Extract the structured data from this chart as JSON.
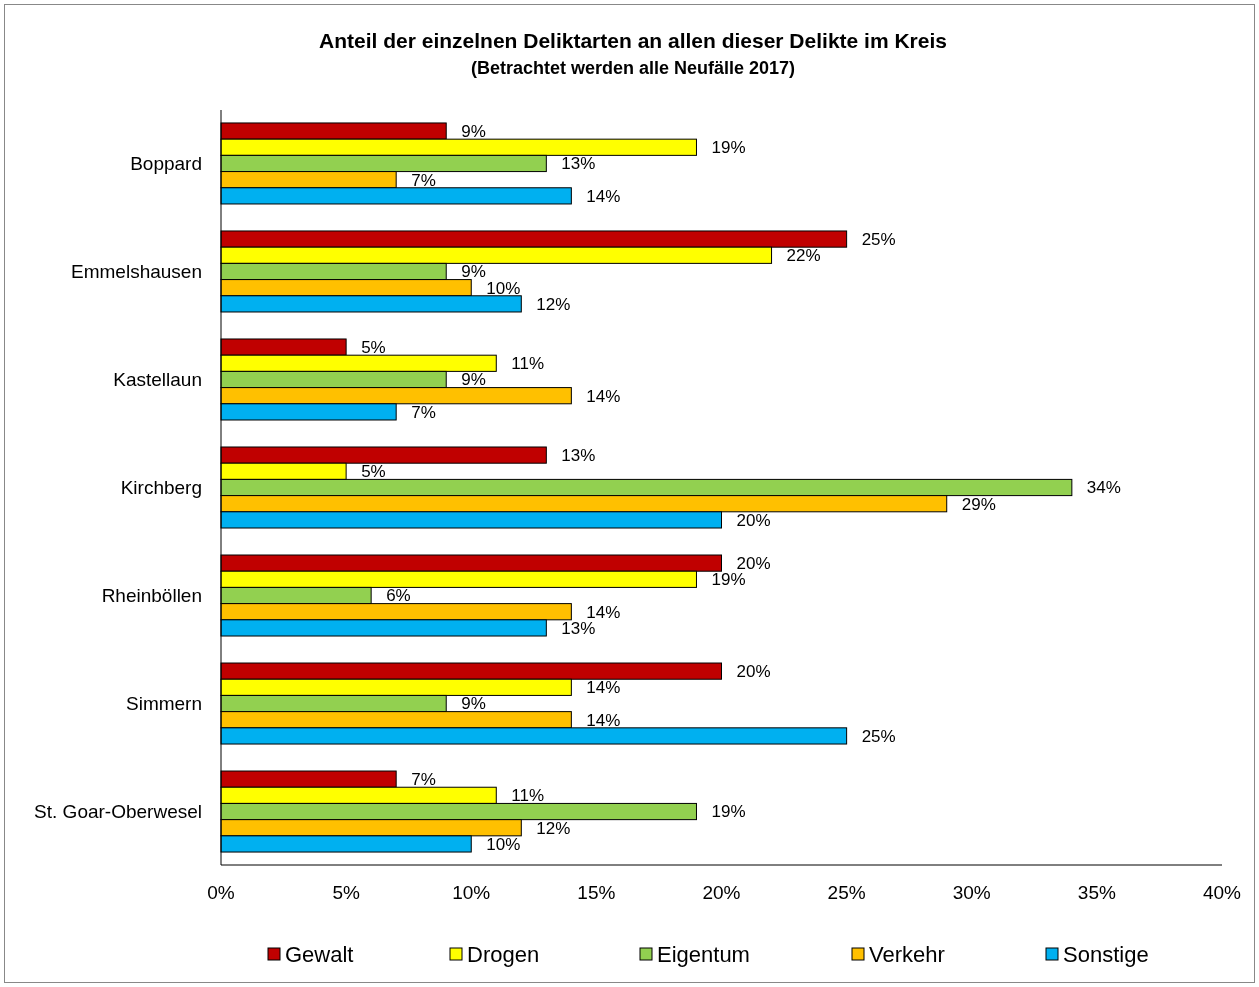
{
  "chart_data": {
    "type": "bar",
    "orientation": "horizontal",
    "title": "Anteil der einzelnen Deliktarten an allen dieser Delikte im Kreis",
    "subtitle": "(Betrachtet werden alle Neufälle 2017)",
    "categories": [
      "Boppard",
      "Emmelshausen",
      "Kastellaun",
      "Kirchberg",
      "Rheinböllen",
      "Simmern",
      "St. Goar-Oberwesel"
    ],
    "series": [
      {
        "name": "Gewalt",
        "color": "#c00000",
        "values": [
          9,
          25,
          5,
          13,
          20,
          20,
          7
        ],
        "value_labels": [
          "9%",
          "25%",
          "5%",
          "13%",
          "20%",
          "20%",
          "7%"
        ]
      },
      {
        "name": "Drogen",
        "color": "#ffff00",
        "values": [
          19,
          22,
          11,
          5,
          19,
          14,
          11
        ],
        "value_labels": [
          "19%",
          "22%",
          "11%",
          "5%",
          "19%",
          "14%",
          "11%"
        ]
      },
      {
        "name": "Eigentum",
        "color": "#92d050",
        "values": [
          13,
          9,
          9,
          34,
          6,
          9,
          19
        ],
        "value_labels": [
          "13%",
          "9%",
          "9%",
          "34%",
          "6%",
          "9%",
          "19%"
        ]
      },
      {
        "name": "Verkehr",
        "color": "#ffc000",
        "values": [
          7,
          10,
          14,
          29,
          14,
          14,
          12
        ],
        "value_labels": [
          "7%",
          "10%",
          "14%",
          "29%",
          "14%",
          "14%",
          "12%"
        ]
      },
      {
        "name": "Sonstige",
        "color": "#00b0f0",
        "values": [
          14,
          12,
          7,
          20,
          13,
          25,
          10
        ],
        "value_labels": [
          "14%",
          "12%",
          "7%",
          "20%",
          "13%",
          "25%",
          "10%"
        ]
      }
    ],
    "xlim": [
      0,
      40
    ],
    "xticks": [
      {
        "value": 0,
        "label": "0%"
      },
      {
        "value": 5,
        "label": "5%"
      },
      {
        "value": 10,
        "label": "10%"
      },
      {
        "value": 15,
        "label": "15%"
      },
      {
        "value": 20,
        "label": "20%"
      },
      {
        "value": 25,
        "label": "25%"
      },
      {
        "value": 30,
        "label": "30%"
      },
      {
        "value": 35,
        "label": "35%"
      },
      {
        "value": 40,
        "label": "40%"
      }
    ],
    "grid": false,
    "legend": "bottom"
  }
}
